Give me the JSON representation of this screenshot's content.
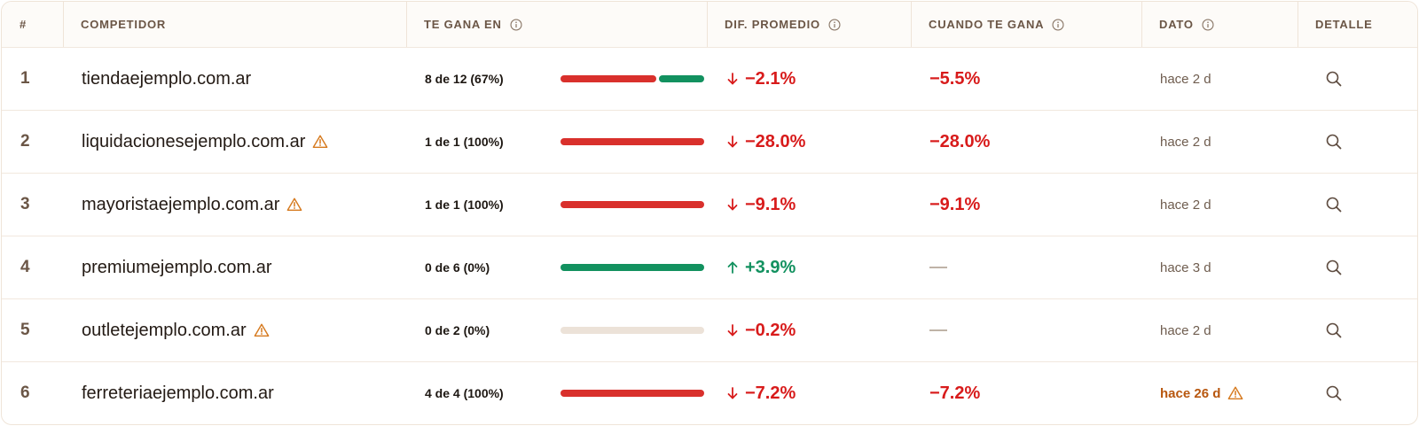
{
  "header": {
    "num": "#",
    "competidor": "COMPETIDOR",
    "te_gana_en": "TE GANA EN",
    "dif_promedio": "DIF. PROMEDIO",
    "cuando_te_gana": "CUANDO TE GANA",
    "dato": "DATO",
    "detalle": "DETALLE"
  },
  "icons": {
    "info": "info-icon",
    "warning": "warning-icon",
    "down": "arrow-down-icon",
    "up": "arrow-up-icon",
    "search": "search-icon"
  },
  "colors": {
    "red": "#d81b1b",
    "bar_red": "#d9302c",
    "green": "#12915f",
    "bar_empty": "#ece2d8",
    "warning": "#d67a1f",
    "stale": "#b8570f"
  },
  "rows": [
    {
      "num": "1",
      "competidor": "tiendaejemplo.com.ar",
      "warning": false,
      "te_gana_en": "8 de 12 (67%)",
      "win_fraction": 0.67,
      "total": 12,
      "dif_promedio": "−2.1%",
      "trend": "down",
      "cuando_te_gana": "−5.5%",
      "dato": "hace 2 d",
      "dato_stale": false
    },
    {
      "num": "2",
      "competidor": "liquidacionesejemplo.com.ar",
      "warning": true,
      "te_gana_en": "1 de 1 (100%)",
      "win_fraction": 1.0,
      "total": 1,
      "dif_promedio": "−28.0%",
      "trend": "down",
      "cuando_te_gana": "−28.0%",
      "dato": "hace 2 d",
      "dato_stale": false
    },
    {
      "num": "3",
      "competidor": "mayoristaejemplo.com.ar",
      "warning": true,
      "te_gana_en": "1 de 1 (100%)",
      "win_fraction": 1.0,
      "total": 1,
      "dif_promedio": "−9.1%",
      "trend": "down",
      "cuando_te_gana": "−9.1%",
      "dato": "hace 2 d",
      "dato_stale": false
    },
    {
      "num": "4",
      "competidor": "premiumejemplo.com.ar",
      "warning": false,
      "te_gana_en": "0 de 6 (0%)",
      "win_fraction": 0.0,
      "total": 6,
      "dif_promedio": "+3.9%",
      "trend": "up",
      "cuando_te_gana": "",
      "dato": "hace 3 d",
      "dato_stale": false
    },
    {
      "num": "5",
      "competidor": "outletejemplo.com.ar",
      "warning": true,
      "te_gana_en": "0 de 2 (0%)",
      "win_fraction": 0.0,
      "total": 2,
      "dif_promedio": "−0.2%",
      "trend": "down",
      "cuando_te_gana": "",
      "dato": "hace 2 d",
      "dato_stale": false
    },
    {
      "num": "6",
      "competidor": "ferreteriaejemplo.com.ar",
      "warning": false,
      "te_gana_en": "4 de 4 (100%)",
      "win_fraction": 1.0,
      "total": 4,
      "dif_promedio": "−7.2%",
      "trend": "down",
      "cuando_te_gana": "−7.2%",
      "dato": "hace 26 d",
      "dato_stale": true
    }
  ]
}
